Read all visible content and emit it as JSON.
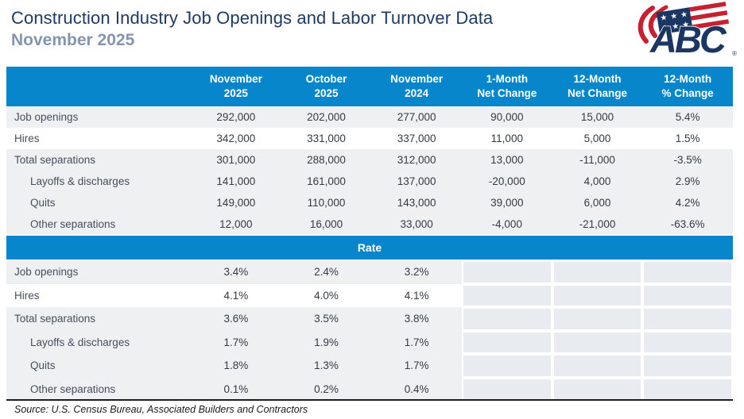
{
  "page": {
    "title": "Construction Industry Job Openings and Labor Turnover Data",
    "subtitle": "November 2025",
    "source": "Source:  U.S. Census Bureau, Associated Builders and Contractors"
  },
  "logo": {
    "text": "ABC",
    "registered": "®",
    "navy": "#1C3664",
    "red": "#C8202E"
  },
  "colors": {
    "header_blue": "#0886CB",
    "band_gray": "#EEF0F2",
    "empty_cell_gray": "#E8ECF0",
    "title_navy": "#1F3A63",
    "subtitle_gray": "#8496AD"
  },
  "table": {
    "columns": [
      "November\n2025",
      "October\n2025",
      "November\n2024",
      "1-Month\nNet Change",
      "12-Month\nNet Change",
      "12-Month\n% Change"
    ],
    "rate_header": "Rate",
    "level_rows": [
      {
        "label": "Job openings",
        "indent": false,
        "shade": true,
        "values": [
          "292,000",
          "202,000",
          "277,000",
          "90,000",
          "15,000",
          "5.4%"
        ]
      },
      {
        "label": "Hires",
        "indent": false,
        "shade": false,
        "values": [
          "342,000",
          "331,000",
          "337,000",
          "11,000",
          "5,000",
          "1.5%"
        ]
      },
      {
        "label": "Total separations",
        "indent": false,
        "shade": true,
        "values": [
          "301,000",
          "288,000",
          "312,000",
          "13,000",
          "-11,000",
          "-3.5%"
        ]
      },
      {
        "label": "Layoffs & discharges",
        "indent": true,
        "shade": true,
        "values": [
          "141,000",
          "161,000",
          "137,000",
          "-20,000",
          "4,000",
          "2.9%"
        ]
      },
      {
        "label": "Quits",
        "indent": true,
        "shade": true,
        "values": [
          "149,000",
          "110,000",
          "143,000",
          "39,000",
          "6,000",
          "4.2%"
        ]
      },
      {
        "label": "Other separations",
        "indent": true,
        "shade": true,
        "values": [
          "12,000",
          "16,000",
          "33,000",
          "-4,000",
          "-21,000",
          "-63.6%"
        ]
      }
    ],
    "rate_rows": [
      {
        "label": "Job openings",
        "indent": false,
        "shade": true,
        "values": [
          "3.4%",
          "2.4%",
          "3.2%"
        ]
      },
      {
        "label": "Hires",
        "indent": false,
        "shade": false,
        "values": [
          "4.1%",
          "4.0%",
          "4.1%"
        ]
      },
      {
        "label": "Total separations",
        "indent": false,
        "shade": true,
        "values": [
          "3.6%",
          "3.5%",
          "3.8%"
        ]
      },
      {
        "label": "Layoffs & discharges",
        "indent": true,
        "shade": true,
        "values": [
          "1.7%",
          "1.9%",
          "1.7%"
        ]
      },
      {
        "label": "Quits",
        "indent": true,
        "shade": true,
        "values": [
          "1.8%",
          "1.3%",
          "1.7%"
        ]
      },
      {
        "label": "Other separations",
        "indent": true,
        "shade": true,
        "values": [
          "0.1%",
          "0.2%",
          "0.4%"
        ]
      }
    ]
  },
  "chart_data": {
    "type": "table",
    "title": "Construction Industry Job Openings and Labor Turnover Data",
    "subtitle": "November 2025",
    "columns": [
      "",
      "November 2025",
      "October 2025",
      "November 2024",
      "1-Month Net Change",
      "12-Month Net Change",
      "12-Month % Change"
    ],
    "level_section": [
      [
        "Job openings",
        "292,000",
        "202,000",
        "277,000",
        "90,000",
        "15,000",
        "5.4%"
      ],
      [
        "Hires",
        "342,000",
        "331,000",
        "337,000",
        "11,000",
        "5,000",
        "1.5%"
      ],
      [
        "Total separations",
        "301,000",
        "288,000",
        "312,000",
        "13,000",
        "-11,000",
        "-3.5%"
      ],
      [
        "Layoffs & discharges",
        "141,000",
        "161,000",
        "137,000",
        "-20,000",
        "4,000",
        "2.9%"
      ],
      [
        "Quits",
        "149,000",
        "110,000",
        "143,000",
        "39,000",
        "6,000",
        "4.2%"
      ],
      [
        "Other separations",
        "12,000",
        "16,000",
        "33,000",
        "-4,000",
        "-21,000",
        "-63.6%"
      ]
    ],
    "rate_section": [
      [
        "Job openings",
        "3.4%",
        "2.4%",
        "3.2%"
      ],
      [
        "Hires",
        "4.1%",
        "4.0%",
        "4.1%"
      ],
      [
        "Total separations",
        "3.6%",
        "3.5%",
        "3.8%"
      ],
      [
        "Layoffs & discharges",
        "1.7%",
        "1.9%",
        "1.7%"
      ],
      [
        "Quits",
        "1.8%",
        "1.3%",
        "1.7%"
      ],
      [
        "Other separations",
        "0.1%",
        "0.2%",
        "0.4%"
      ]
    ],
    "source": "U.S. Census Bureau, Associated Builders and Contractors"
  }
}
